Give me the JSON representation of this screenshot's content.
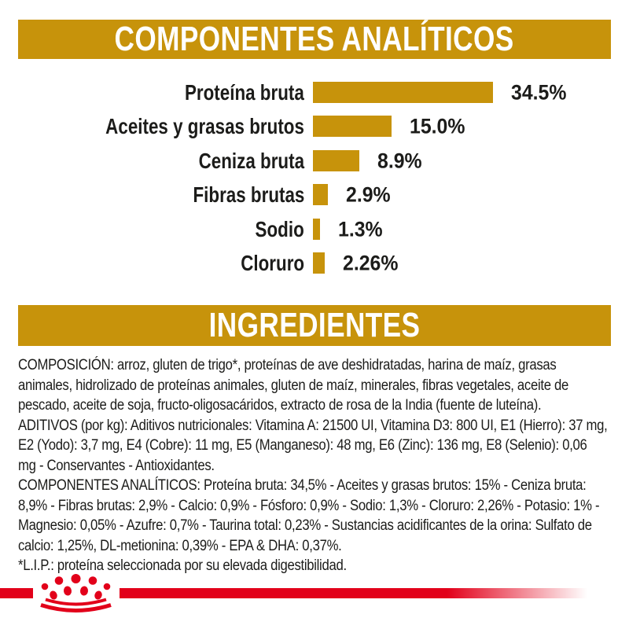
{
  "colors": {
    "gold": "#C7930B",
    "red": "#E2001A",
    "text": "#1C1C1A",
    "banner_text": "#FFFFFF"
  },
  "sections": {
    "analytical": {
      "title": "COMPONENTES ANALÍTICOS"
    },
    "ingredients": {
      "title": "INGREDIENTES"
    }
  },
  "chart_data": {
    "type": "bar",
    "orientation": "horizontal",
    "title": "COMPONENTES ANALÍTICOS",
    "categories": [
      "Proteína bruta",
      "Aceites y grasas brutos",
      "Ceniza bruta",
      "Fibras brutas",
      "Sodio",
      "Cloruro"
    ],
    "values": [
      34.5,
      15.0,
      8.9,
      2.9,
      1.3,
      2.26
    ],
    "value_labels": [
      "34.5%",
      "15.0%",
      "8.9%",
      "2.9%",
      "1.3%",
      "2.26%"
    ],
    "unit": "%",
    "bar_color": "#C7930B",
    "xlim": [
      0,
      36
    ],
    "grid": false,
    "legend": false
  },
  "ingredients_text": {
    "composition": "COMPOSICIÓN: arroz, gluten de trigo*, proteínas de ave deshidratadas, harina de maíz, grasas animales, hidrolizado de proteínas animales, gluten de maíz, minerales, fibras vegetales, aceite de pescado, aceite de soja, fructo-oligosacáridos, extracto de rosa de la India (fuente de luteína).",
    "additives": "ADITIVOS (por kg): Aditivos nutricionales: Vitamina A: 21500 UI, Vitamina D3: 800 UI, E1 (Hierro): 37 mg, E2 (Yodo): 3,7 mg, E4 (Cobre): 11 mg, E5 (Manganeso): 48 mg, E6 (Zinc): 136 mg, E8 (Selenio): 0,06 mg - Conservantes - Antioxidantes.",
    "analytical_constituents": "COMPONENTES ANALÍTICOS: Proteína bruta: 34,5% - Aceites y grasas brutos: 15% - Ceniza bruta: 8,9% - Fibras brutas: 2,9% - Calcio: 0,9% - Fósforo: 0,9% - Sodio: 1,3% - Cloruro: 2,26% - Potasio: 1% - Magnesio: 0,05% - Azufre: 0,7% - Taurina total: 0,23% - Sustancias acidificantes de la orina: Sulfato de calcio: 1,25%, DL-metionina: 0,39% - EPA & DHA: 0,37%.",
    "footnote": "*L.I.P.: proteína seleccionada por su elevada digestibilidad."
  },
  "footer": {
    "logo": "royal-canin-crown-logo"
  }
}
